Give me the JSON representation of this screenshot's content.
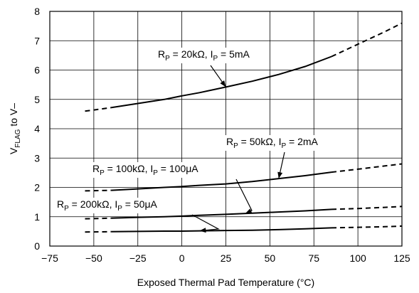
{
  "chart_data": {
    "type": "line",
    "title": "",
    "xlabel": "Exposed Thermal Pad Temperature (°C)",
    "ylabel": {
      "main": "V",
      "sub": "FLAG",
      "rest": " to V–"
    },
    "xlim": [
      -75,
      125
    ],
    "ylim": [
      0,
      8
    ],
    "xticks": [
      -75,
      -50,
      -25,
      0,
      25,
      50,
      75,
      100,
      125
    ],
    "yticks": [
      0,
      1,
      2,
      3,
      4,
      5,
      6,
      7,
      8
    ],
    "grid": true,
    "series": [
      {
        "name": "R_P = 20kΩ, I_P = 5mA",
        "label": {
          "a": "R",
          "asub": "P",
          "b": " = 20kΩ, I",
          "bsub": "P",
          "c": " = 5mA"
        },
        "x": [
          -55,
          -40,
          -25,
          -10,
          0,
          10,
          25,
          40,
          55,
          70,
          85,
          100,
          115,
          125
        ],
        "y": [
          4.6,
          4.72,
          4.86,
          5.0,
          5.12,
          5.23,
          5.42,
          5.62,
          5.85,
          6.12,
          6.46,
          6.88,
          7.3,
          7.6
        ],
        "solid_from": -40,
        "solid_to": 85
      },
      {
        "name": "R_P = 50kΩ, I_P = 2mA",
        "label": {
          "a": "R",
          "asub": "P",
          "b": " = 50kΩ, I",
          "bsub": "P",
          "c": " = 2mA"
        },
        "x": [
          -55,
          -40,
          -25,
          -10,
          0,
          10,
          25,
          40,
          55,
          70,
          85,
          100,
          115,
          125
        ],
        "y": [
          1.88,
          1.9,
          1.95,
          2.0,
          2.03,
          2.07,
          2.12,
          2.2,
          2.3,
          2.4,
          2.52,
          2.62,
          2.73,
          2.8
        ],
        "solid_from": -40,
        "solid_to": 85
      },
      {
        "name": "R_P = 100kΩ, I_P = 100μA",
        "label": {
          "a": "R",
          "asub": "P",
          "b": " = 100kΩ, I",
          "bsub": "P",
          "c": " = 100μA"
        },
        "x": [
          -55,
          -40,
          -25,
          -10,
          0,
          10,
          25,
          40,
          55,
          70,
          85,
          100,
          115,
          125
        ],
        "y": [
          0.93,
          0.95,
          0.98,
          1.0,
          1.02,
          1.05,
          1.08,
          1.12,
          1.16,
          1.2,
          1.25,
          1.28,
          1.32,
          1.35
        ],
        "solid_from": -40,
        "solid_to": 85
      },
      {
        "name": "R_P = 200kΩ, I_P = 50μA",
        "label": {
          "a": "R",
          "asub": "P",
          "b": " = 200kΩ, I",
          "bsub": "P",
          "c": " = 50μA"
        },
        "x": [
          -55,
          -40,
          -25,
          -10,
          0,
          10,
          25,
          40,
          55,
          70,
          85,
          100,
          115,
          125
        ],
        "y": [
          0.48,
          0.49,
          0.5,
          0.51,
          0.51,
          0.52,
          0.53,
          0.54,
          0.56,
          0.59,
          0.62,
          0.64,
          0.66,
          0.68
        ],
        "solid_from": -40,
        "solid_to": 85
      }
    ]
  }
}
